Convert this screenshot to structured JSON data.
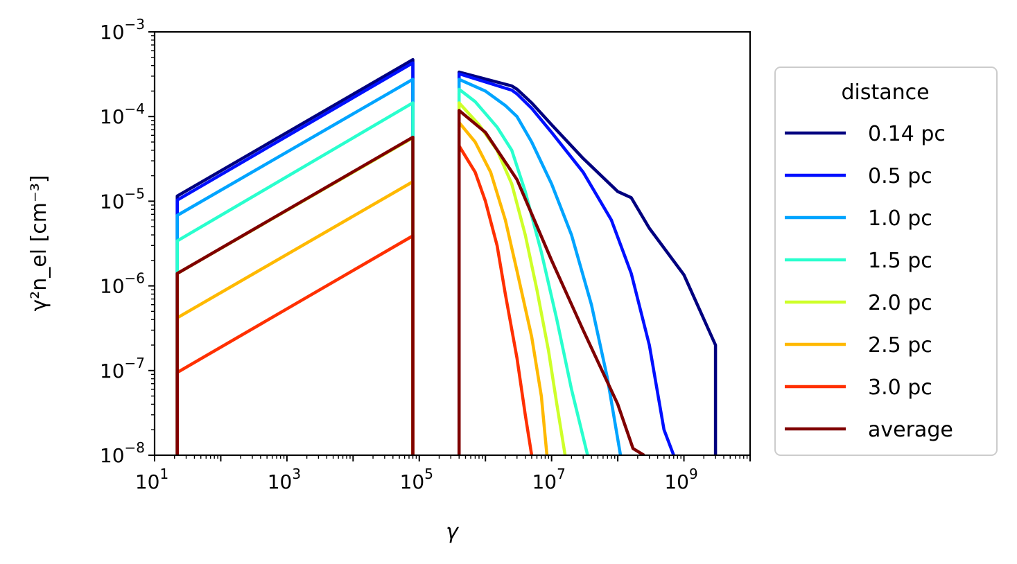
{
  "chart_data": {
    "type": "line",
    "title": "",
    "xlabel": "γ",
    "ylabel": "γ²n_el [cm⁻³]",
    "xscale": "log",
    "yscale": "log",
    "xlim": [
      10,
      10000000000
    ],
    "ylim": [
      1e-08,
      0.001
    ],
    "x_ticks": [
      {
        "value": 10,
        "base": "10",
        "exp": "1"
      },
      {
        "value": 1000,
        "base": "10",
        "exp": "3"
      },
      {
        "value": 100000,
        "base": "10",
        "exp": "5"
      },
      {
        "value": 10000000,
        "base": "10",
        "exp": "7"
      },
      {
        "value": 1000000000,
        "base": "10",
        "exp": "9"
      }
    ],
    "y_ticks": [
      {
        "value": 1e-08,
        "base": "10",
        "exp": "−8"
      },
      {
        "value": 1e-07,
        "base": "10",
        "exp": "−7"
      },
      {
        "value": 1e-06,
        "base": "10",
        "exp": "−6"
      },
      {
        "value": 1e-05,
        "base": "10",
        "exp": "−5"
      },
      {
        "value": 0.0001,
        "base": "10",
        "exp": "−4"
      },
      {
        "value": 0.001,
        "base": "10",
        "exp": "−3"
      }
    ],
    "grid": false,
    "legend": {
      "title": "distance",
      "placement": "outside-right"
    },
    "series": [
      {
        "name": "0.14 pc",
        "color": "#00007f",
        "segments": [
          [
            [
              22,
              1e-08
            ],
            [
              22,
              1.15e-05
            ],
            [
              80000,
              0.00047
            ],
            [
              80000,
              1e-08
            ]
          ],
          [
            [
              400000,
              1e-08
            ],
            [
              400000,
              0.000335
            ],
            [
              2500000,
              0.00023
            ],
            [
              3000000,
              0.00021
            ],
            [
              5000000,
              0.000145
            ],
            [
              10000000,
              8e-05
            ],
            [
              30000000,
              3.2e-05
            ],
            [
              100000000,
              1.3e-05
            ],
            [
              160000000,
              1.1e-05
            ],
            [
              300000000,
              4.8e-06
            ],
            [
              1000000000,
              1.35e-06
            ],
            [
              3000000000,
              2e-07
            ],
            [
              3000000000,
              1e-08
            ]
          ]
        ]
      },
      {
        "name": "0.5 pc",
        "color": "#0010ff",
        "segments": [
          [
            [
              22,
              1e-08
            ],
            [
              22,
              1.03e-05
            ],
            [
              80000,
              0.00043
            ],
            [
              80000,
              1e-08
            ]
          ],
          [
            [
              400000,
              1e-08
            ],
            [
              400000,
              0.00032
            ],
            [
              2500000,
              0.000205
            ],
            [
              3000000,
              0.000185
            ],
            [
              5000000,
              0.000125
            ],
            [
              10000000,
              6.5e-05
            ],
            [
              30000000,
              2.2e-05
            ],
            [
              80000000,
              6e-06
            ],
            [
              160000000,
              1.4e-06
            ],
            [
              300000000,
              2e-07
            ],
            [
              500000000,
              2e-08
            ],
            [
              700000000,
              1e-08
            ]
          ]
        ]
      },
      {
        "name": "1.0 pc",
        "color": "#00a4ff",
        "segments": [
          [
            [
              22,
              1e-08
            ],
            [
              22,
              6.8e-06
            ],
            [
              80000,
              0.000275
            ],
            [
              80000,
              1e-08
            ]
          ],
          [
            [
              400000,
              1e-08
            ],
            [
              400000,
              0.000275
            ],
            [
              1000000,
              0.0002
            ],
            [
              2000000,
              0.000135
            ],
            [
              3000000,
              0.0001
            ],
            [
              5000000,
              5e-05
            ],
            [
              10000000,
              1.6e-05
            ],
            [
              20000000,
              4e-06
            ],
            [
              40000000,
              6e-07
            ],
            [
              70000000,
              8e-08
            ],
            [
              110000000,
              1e-08
            ]
          ]
        ]
      },
      {
        "name": "1.5 pc",
        "color": "#29ffce",
        "segments": [
          [
            [
              22,
              1e-08
            ],
            [
              22,
              3.4e-06
            ],
            [
              80000,
              0.000145
            ],
            [
              80000,
              1e-08
            ]
          ],
          [
            [
              400000,
              1e-08
            ],
            [
              400000,
              0.00021
            ],
            [
              700000,
              0.00015
            ],
            [
              1500000,
              7.5e-05
            ],
            [
              2500000,
              4e-05
            ],
            [
              4000000,
              1.3e-05
            ],
            [
              7000000,
              2.5e-06
            ],
            [
              12000000,
              4e-07
            ],
            [
              20000000,
              6e-08
            ],
            [
              35000000,
              1e-08
            ]
          ]
        ]
      },
      {
        "name": "2.0 pc",
        "color": "#ceff29",
        "segments": [
          [
            [
              22,
              1e-08
            ],
            [
              22,
              1.4e-06
            ],
            [
              80000,
              5.6e-05
            ],
            [
              80000,
              1e-08
            ]
          ],
          [
            [
              400000,
              1e-08
            ],
            [
              400000,
              0.000145
            ],
            [
              800000,
              8e-05
            ],
            [
              1500000,
              4e-05
            ],
            [
              2500000,
              1.6e-05
            ],
            [
              4000000,
              4e-06
            ],
            [
              6000000,
              9e-07
            ],
            [
              9000000,
              1.7e-07
            ],
            [
              12000000,
              4e-08
            ],
            [
              16000000,
              1e-08
            ]
          ]
        ]
      },
      {
        "name": "2.5 pc",
        "color": "#ffb900",
        "segments": [
          [
            [
              22,
              1e-08
            ],
            [
              22,
              4.2e-07
            ],
            [
              80000,
              1.7e-05
            ],
            [
              80000,
              1e-08
            ]
          ],
          [
            [
              400000,
              1e-08
            ],
            [
              400000,
              8.5e-05
            ],
            [
              700000,
              5e-05
            ],
            [
              1200000,
              2.2e-05
            ],
            [
              2000000,
              6e-06
            ],
            [
              3000000,
              1.5e-06
            ],
            [
              5000000,
              2.5e-07
            ],
            [
              7000000,
              5e-08
            ],
            [
              8500000,
              1e-08
            ]
          ]
        ]
      },
      {
        "name": "3.0 pc",
        "color": "#ff3000",
        "segments": [
          [
            [
              22,
              1e-08
            ],
            [
              22,
              9.5e-08
            ],
            [
              80000,
              3.9e-06
            ],
            [
              80000,
              1e-08
            ]
          ],
          [
            [
              400000,
              1e-08
            ],
            [
              400000,
              4.5e-05
            ],
            [
              700000,
              2.2e-05
            ],
            [
              1000000,
              1e-05
            ],
            [
              1500000,
              3e-06
            ],
            [
              2000000,
              8e-07
            ],
            [
              3000000,
              1.4e-07
            ],
            [
              4000000,
              3e-08
            ],
            [
              5000000,
              1e-08
            ]
          ]
        ]
      },
      {
        "name": "average",
        "color": "#7f0000",
        "segments": [
          [
            [
              22,
              1e-08
            ],
            [
              22,
              1.4e-06
            ],
            [
              80000,
              5.7e-05
            ],
            [
              80000,
              1e-08
            ]
          ],
          [
            [
              400000,
              1e-08
            ],
            [
              400000,
              0.000118
            ],
            [
              1000000,
              6.5e-05
            ],
            [
              3000000,
              1.8e-05
            ],
            [
              10000000,
              2e-06
            ],
            [
              30000000,
              3e-07
            ],
            [
              100000000,
              4e-08
            ],
            [
              170000000,
              1.2e-08
            ],
            [
              250000000,
              1e-08
            ]
          ]
        ]
      }
    ]
  }
}
